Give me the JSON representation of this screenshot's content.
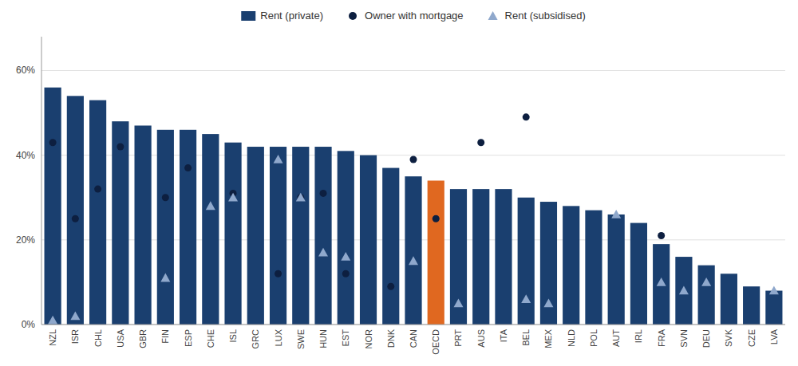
{
  "chart_data": {
    "type": "bar",
    "categories": [
      "NZL",
      "ISR",
      "CHL",
      "USA",
      "GBR",
      "FIN",
      "ESP",
      "CHE",
      "ISL",
      "GRC",
      "LUX",
      "SWE",
      "HUN",
      "EST",
      "NOR",
      "DNK",
      "CAN",
      "OECD",
      "PRT",
      "AUS",
      "ITA",
      "BEL",
      "MEX",
      "NLD",
      "POL",
      "AUT",
      "IRL",
      "FRA",
      "SVN",
      "DEU",
      "SVK",
      "CZE",
      "LVA"
    ],
    "series": [
      {
        "name": "Rent (private)",
        "type": "bar",
        "color": "#1a3f6f",
        "colors": [
          "#1a3f6f",
          "#1a3f6f",
          "#1a3f6f",
          "#1a3f6f",
          "#1a3f6f",
          "#1a3f6f",
          "#1a3f6f",
          "#1a3f6f",
          "#1a3f6f",
          "#1a3f6f",
          "#1a3f6f",
          "#1a3f6f",
          "#1a3f6f",
          "#1a3f6f",
          "#1a3f6f",
          "#1a3f6f",
          "#1a3f6f",
          "#e06820",
          "#1a3f6f",
          "#1a3f6f",
          "#1a3f6f",
          "#1a3f6f",
          "#1a3f6f",
          "#1a3f6f",
          "#1a3f6f",
          "#1a3f6f",
          "#1a3f6f",
          "#1a3f6f",
          "#1a3f6f",
          "#1a3f6f",
          "#1a3f6f",
          "#1a3f6f",
          "#1a3f6f"
        ],
        "values": [
          56,
          54,
          53,
          48,
          47,
          46,
          46,
          45,
          43,
          42,
          42,
          42,
          42,
          41,
          40,
          37,
          35,
          34,
          32,
          32,
          32,
          30,
          29,
          28,
          27,
          26,
          24,
          19,
          16,
          14,
          12,
          9,
          8
        ]
      },
      {
        "name": "Owner with mortgage",
        "type": "scatter",
        "marker": "circle",
        "color": "#0d1f40",
        "values": [
          43,
          25,
          32,
          42,
          null,
          30,
          37,
          null,
          31,
          null,
          12,
          30,
          31,
          12,
          null,
          9,
          39,
          25,
          null,
          43,
          null,
          49,
          null,
          null,
          null,
          null,
          null,
          21,
          null,
          null,
          null,
          null,
          null
        ]
      },
      {
        "name": "Rent (subsidised)",
        "type": "scatter",
        "marker": "triangle",
        "color": "#8fa8cc",
        "values": [
          1,
          2,
          null,
          null,
          null,
          11,
          null,
          28,
          30,
          null,
          39,
          30,
          17,
          16,
          null,
          null,
          15,
          null,
          5,
          null,
          null,
          6,
          5,
          null,
          null,
          26,
          null,
          10,
          8,
          10,
          null,
          null,
          8
        ]
      }
    ],
    "ylim": [
      0,
      68
    ],
    "yticks": [
      {
        "value": 0,
        "label": "0%"
      },
      {
        "value": 20,
        "label": "20%"
      },
      {
        "value": 40,
        "label": "40%"
      },
      {
        "value": 60,
        "label": "60%"
      }
    ],
    "grid": true,
    "legend": "top"
  }
}
